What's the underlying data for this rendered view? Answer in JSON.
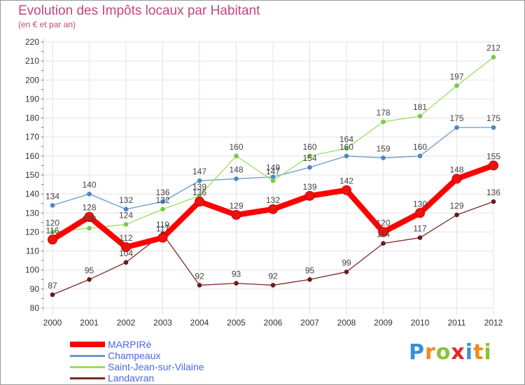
{
  "colors": {
    "title": "#c2487a",
    "legend_text": "#4a67e8",
    "axis_text": "#333333",
    "grid": "#e3e3e3"
  },
  "chart_data": {
    "type": "line",
    "title": "Evolution des Impôts locaux par Habitant",
    "subtitle": "(en € et par an)",
    "xlabel": "",
    "ylabel": "",
    "x": [
      "2000",
      "2001",
      "2002",
      "2003",
      "2004",
      "2005",
      "2006",
      "2007",
      "2008",
      "2009",
      "2010",
      "2011",
      "2012"
    ],
    "ylim": [
      80,
      220
    ],
    "yticks": [
      80,
      90,
      100,
      110,
      120,
      130,
      140,
      150,
      160,
      170,
      180,
      190,
      200,
      210,
      220
    ],
    "grid": true,
    "legend_position": "bottom-left",
    "series": [
      {
        "name": "MARPIRé",
        "color": "#ff0000",
        "marker": "#ee1111",
        "width": "thick",
        "values": [
          116,
          128,
          112,
          117,
          136,
          129,
          132,
          139,
          142,
          120,
          130,
          148,
          155
        ]
      },
      {
        "name": "Champeaux",
        "color": "#6699cc",
        "marker": "#4d86c7",
        "width": "thin",
        "values": [
          134,
          140,
          132,
          136,
          147,
          148,
          149,
          154,
          160,
          159,
          160,
          175,
          175
        ]
      },
      {
        "name": "Saint-Jean-sur-Vilaine",
        "color": "#99dd66",
        "marker": "#77cc44",
        "width": "thin",
        "values": [
          120,
          122,
          124,
          132,
          139,
          160,
          147,
          160,
          164,
          178,
          181,
          197,
          212
        ]
      },
      {
        "name": "Landavran",
        "color": "#7a2a2a",
        "marker": "#6b1a1a",
        "width": "thin",
        "values": [
          87,
          95,
          104,
          119,
          92,
          93,
          92,
          95,
          99,
          114,
          117,
          129,
          136
        ]
      }
    ],
    "point_labels": [
      [
        "116",
        "128",
        "112",
        "117",
        "136",
        "129",
        "132",
        "139",
        "142",
        "120",
        "130",
        "148",
        "155"
      ],
      [
        "134",
        "140",
        "132",
        "136",
        "147",
        "148",
        "149",
        "154",
        "160",
        "159",
        "160",
        "175",
        "175"
      ],
      [
        "120",
        "122",
        "124",
        "132",
        "139",
        "160",
        "147",
        "160",
        "164",
        "178",
        "181",
        "197",
        "212"
      ],
      [
        "87",
        "95",
        "104",
        "119",
        "92",
        "93",
        "92",
        "95",
        "99",
        "114",
        "117",
        "129",
        "136"
      ]
    ]
  },
  "logo": {
    "letters": [
      "P",
      "r",
      "o",
      "x",
      "i",
      "t",
      "i"
    ],
    "colors": [
      "#3a8fd8",
      "#f08a1a",
      "#8ac23a",
      "#e8242a",
      "#3a8fd8",
      "#f08a1a",
      "#8ac23a"
    ]
  }
}
